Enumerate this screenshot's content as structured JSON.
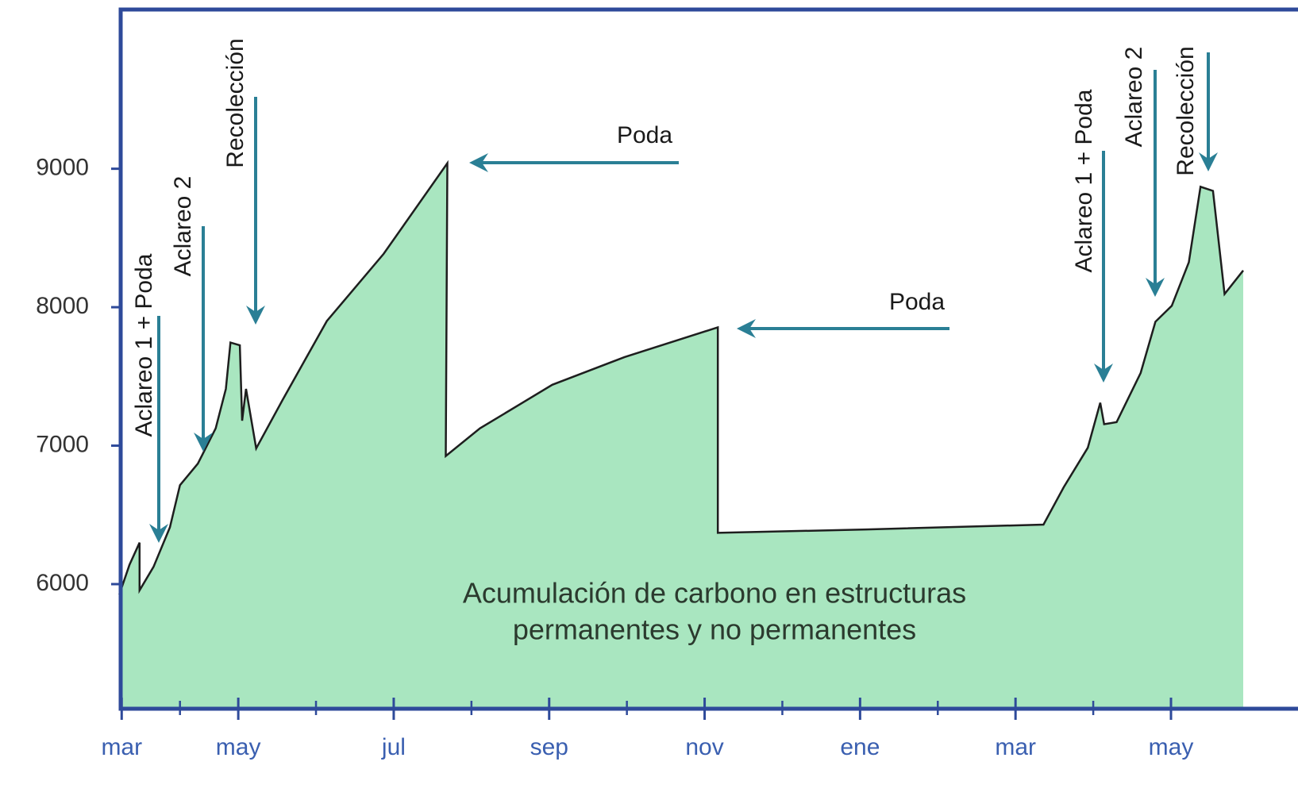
{
  "chart_data": {
    "type": "area",
    "x": [
      0.47,
      0.6,
      0.73,
      0.73,
      0.91,
      1.12,
      1.25,
      1.48,
      1.71,
      1.84,
      1.9,
      2.02,
      2.05,
      2.1,
      2.23,
      2.57,
      3.14,
      3.87,
      4.69,
      4.67,
      5.11,
      6.04,
      6.97,
      8.17,
      8.17,
      10.08,
      12.36,
      12.62,
      12.93,
      13.09,
      13.14,
      13.3,
      13.61,
      13.8,
      14.01,
      14.23,
      14.38,
      14.54,
      14.69,
      14.93
    ],
    "values": [
      5925,
      6140,
      6300,
      5955,
      6125,
      6410,
      6715,
      6870,
      7125,
      7410,
      7745,
      7725,
      7180,
      7410,
      6980,
      7330,
      7900,
      8385,
      9040,
      6925,
      7125,
      7440,
      7640,
      7855,
      6370,
      6395,
      6430,
      6700,
      6985,
      7310,
      7155,
      7170,
      7525,
      7895,
      8010,
      8325,
      8870,
      8840,
      8095,
      8265
    ],
    "fill_color": "#a9e6c0",
    "line_color": "#1e1e1e",
    "xlim": [
      0.25,
      14.95
    ],
    "ylim": [
      5100,
      10150
    ],
    "xticks": [
      {
        "value": 0.5,
        "label": "mar"
      },
      {
        "value": 2,
        "label": "may"
      },
      {
        "value": 4,
        "label": "jul"
      },
      {
        "value": 6,
        "label": "sep"
      },
      {
        "value": 8,
        "label": "nov"
      },
      {
        "value": 10,
        "label": "ene"
      },
      {
        "value": 12,
        "label": "mar"
      },
      {
        "value": 14,
        "label": "may"
      }
    ],
    "yticks": [
      6000,
      7000,
      8000,
      9000
    ],
    "annotations": [
      "Aclareo 1 + Poda",
      "Aclareo 2",
      "Recolección",
      "Poda",
      "Poda",
      "Aclareo 1 + Poda",
      "Aclareo 2",
      "Recolección"
    ],
    "area_label": [
      "Acumulación de carbono en estructuras",
      "permanentes y no permanentes"
    ]
  }
}
